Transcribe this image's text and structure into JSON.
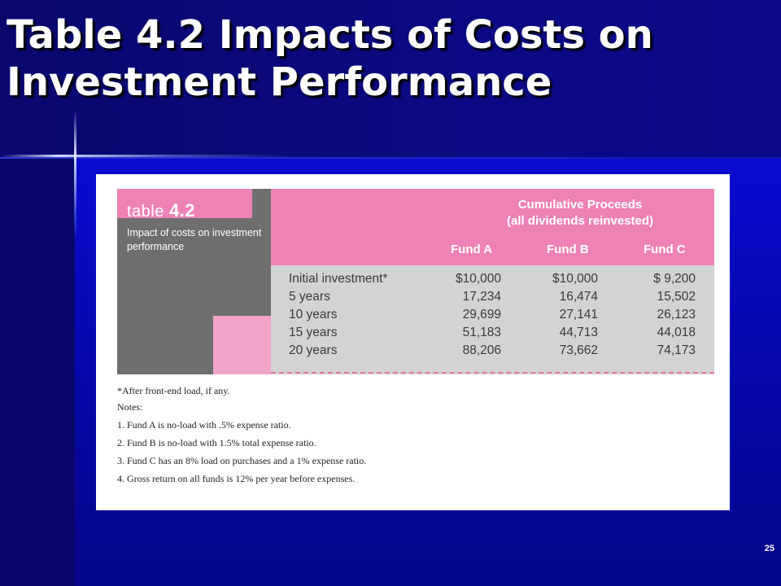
{
  "slide": {
    "title": "Table 4.2 Impacts of Costs on Investment Performance",
    "slide_number": "25"
  },
  "figure": {
    "label_word": "table",
    "label_number": "4.2",
    "caption": "Impact of costs on investment performance",
    "header": {
      "line1": "Cumulative Proceeds",
      "line2": "(all dividends reinvested)"
    },
    "columns": [
      "Fund A",
      "Fund B",
      "Fund C"
    ],
    "rows": [
      {
        "label": "Initial investment*",
        "values": [
          "$10,000",
          "$10,000",
          "$ 9,200"
        ]
      },
      {
        "label": "5 years",
        "values": [
          "17,234",
          "16,474",
          "15,502"
        ]
      },
      {
        "label": "10 years",
        "values": [
          "29,699",
          "27,141",
          "26,123"
        ]
      },
      {
        "label": "15 years",
        "values": [
          "51,183",
          "44,713",
          "44,018"
        ]
      },
      {
        "label": "20 years",
        "values": [
          "88,206",
          "73,662",
          "74,173"
        ]
      }
    ],
    "footnote": "*After front-end load, if any.",
    "notes_heading": "Notes:",
    "notes": [
      "1. Fund A is no-load with .5% expense ratio.",
      "2. Fund B is no-load with 1.5% total expense ratio.",
      "3. Fund C has an 8% load on purchases and a 1% expense ratio.",
      "4. Gross return on all funds is 12% per year before expenses."
    ]
  },
  "colors": {
    "slide_background": "#0b0b8f",
    "pink": "#ee82b6",
    "gray_block": "#6e6e6e",
    "table_body": "#d3d3d3"
  }
}
